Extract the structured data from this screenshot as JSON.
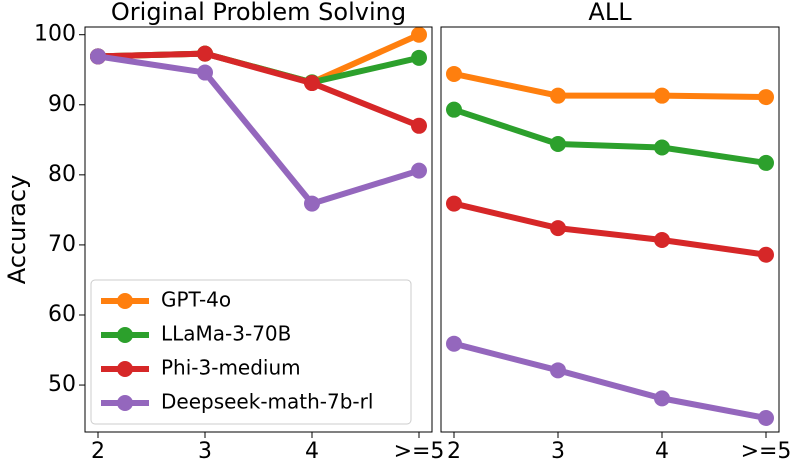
{
  "chart_data": [
    {
      "type": "line",
      "title": "Original Problem Solving",
      "y_label": "Accuracy",
      "categories": [
        "2",
        "3",
        "4",
        ">=5"
      ],
      "ylim": [
        43.3,
        101.1
      ],
      "yticks": [
        50,
        60,
        70,
        80,
        90,
        100
      ],
      "legend": "lower left",
      "series": [
        {
          "name": "GPT-4o",
          "color": "#ff7f0e",
          "values": [
            96.9,
            97.3,
            93.2,
            100
          ]
        },
        {
          "name": "LLaMa-3-70B",
          "color": "#2ca02c",
          "values": [
            96.9,
            97.3,
            93.2,
            96.7
          ]
        },
        {
          "name": "Phi-3-medium",
          "color": "#d62728",
          "values": [
            96.9,
            97.3,
            93.1,
            87.0
          ]
        },
        {
          "name": "Deepseek-math-7b-rl",
          "color": "#9467bd",
          "values": [
            96.9,
            94.6,
            75.9,
            80.6
          ]
        }
      ]
    },
    {
      "type": "line",
      "title": "ALL",
      "categories": [
        "2",
        "3",
        "4",
        ">=5"
      ],
      "ylim": [
        43.3,
        101.1
      ],
      "series": [
        {
          "name": "GPT-4o",
          "color": "#ff7f0e",
          "values": [
            94.4,
            91.3,
            91.3,
            91.1
          ]
        },
        {
          "name": "LLaMa-3-70B",
          "color": "#2ca02c",
          "values": [
            89.3,
            84.4,
            83.9,
            81.7
          ]
        },
        {
          "name": "Phi-3-medium",
          "color": "#d62728",
          "values": [
            75.9,
            72.4,
            70.7,
            68.6
          ]
        },
        {
          "name": "Deepseek-math-7b-rl",
          "color": "#9467bd",
          "values": [
            55.9,
            52.1,
            48.1,
            45.3
          ]
        }
      ]
    }
  ]
}
